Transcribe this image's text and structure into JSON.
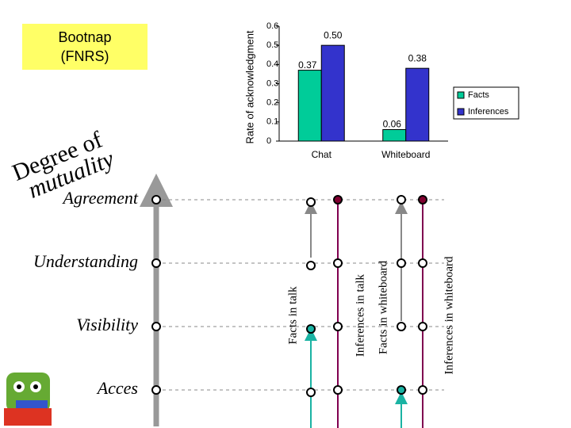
{
  "slide": {
    "box": [
      "Bootnap",
      "(FNRS)"
    ],
    "arc_title": [
      "Degree of",
      "mutuality"
    ],
    "levels": [
      "Agreement",
      "Understanding",
      "Visibility",
      "Acces"
    ],
    "columns": [
      "Facts in talk",
      "Inferences in talk",
      "Facts in whiteboard",
      "Inferences in whiteboard"
    ]
  },
  "chart_data": {
    "type": "bar",
    "y_label": "Rate of acknowledgment",
    "categories": [
      "Chat",
      "Whiteboard"
    ],
    "series": [
      {
        "name": "Facts",
        "color": "#00cc99",
        "values": [
          0.37,
          0.06
        ],
        "value_labels": [
          "0.37",
          "0.06"
        ]
      },
      {
        "name": "Inferences",
        "color": "#3333cc",
        "values": [
          0.5,
          0.38
        ],
        "value_labels": [
          "0.50",
          "0.38"
        ]
      }
    ],
    "ylim": [
      0,
      0.6
    ],
    "yticks": [
      0,
      0.1,
      0.2,
      0.3,
      0.4,
      0.5,
      0.6
    ],
    "legend": "right"
  }
}
